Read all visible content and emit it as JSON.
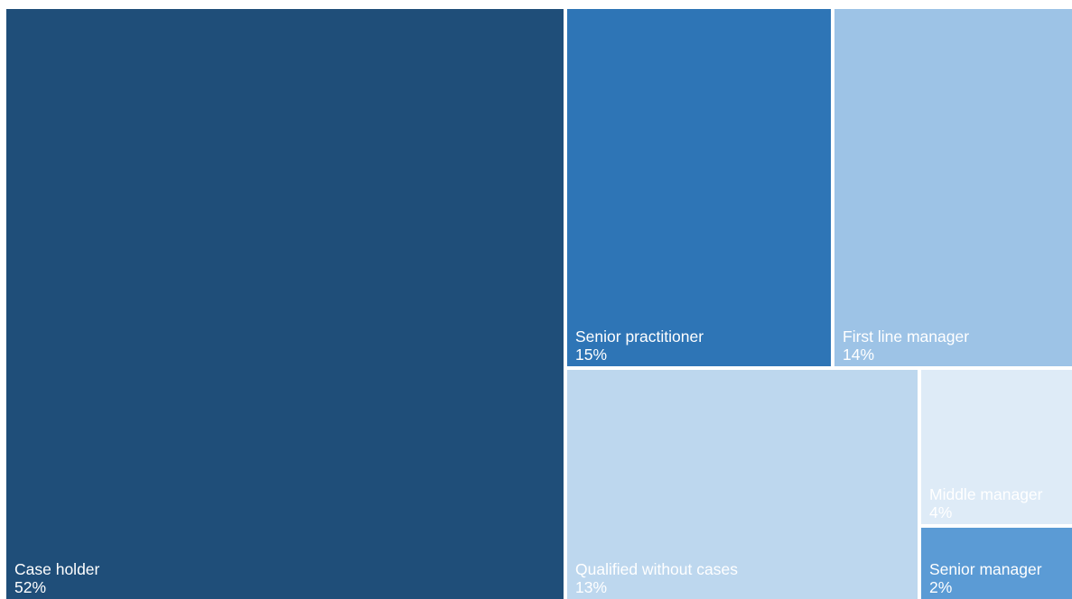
{
  "chart_data": {
    "type": "treemap",
    "items": [
      {
        "id": "case-holder",
        "label": "Case holder",
        "value_text": "52%",
        "value": 52,
        "color": "#1f4e79"
      },
      {
        "id": "senior-practitioner",
        "label": "Senior practitioner",
        "value_text": "15%",
        "value": 15,
        "color": "#2e75b6"
      },
      {
        "id": "first-line-manager",
        "label": "First line manager",
        "value_text": "14%",
        "value": 14,
        "color": "#9dc3e6"
      },
      {
        "id": "qualified-without-cases",
        "label": "Qualified without cases",
        "value_text": "13%",
        "value": 13,
        "color": "#bdd7ee"
      },
      {
        "id": "middle-manager",
        "label": "Middle manager",
        "value_text": "4%",
        "value": 4,
        "color": "#deebf7"
      },
      {
        "id": "senior-manager",
        "label": "Senior manager",
        "value_text": "2%",
        "value": 2,
        "color": "#5b9bd5"
      }
    ]
  }
}
